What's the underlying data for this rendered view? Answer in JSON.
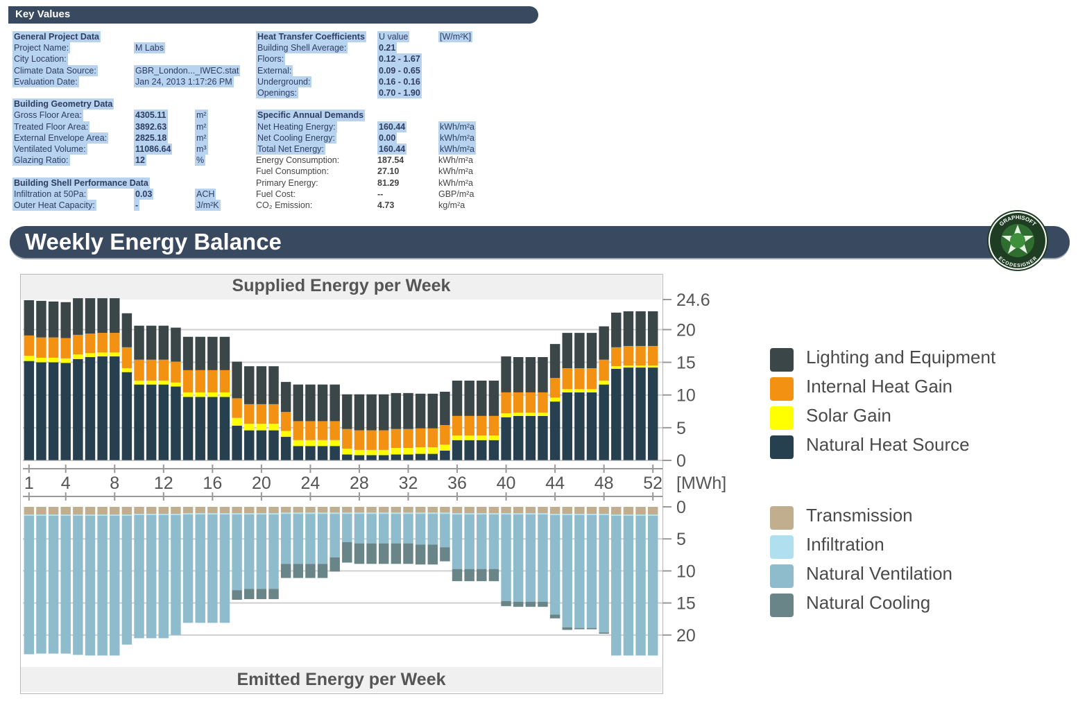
{
  "key_values": {
    "title": "Key Values",
    "general": {
      "header": "General Project Data",
      "rows": [
        {
          "label": "Project Name:",
          "value": "M Labs"
        },
        {
          "label": "City Location:",
          "value": ""
        },
        {
          "label": "Climate Data Source:",
          "value": "GBR_London..._IWEC.stat"
        },
        {
          "label": "Evaluation Date:",
          "value": "Jan 24, 2013 1:17:26 PM"
        }
      ]
    },
    "geometry": {
      "header": "Building Geometry Data",
      "rows": [
        {
          "label": "Gross Floor Area:",
          "value": "4305.11",
          "unit": "m²"
        },
        {
          "label": "Treated Floor Area:",
          "value": "3892.63",
          "unit": "m²"
        },
        {
          "label": "External Envelope Area:",
          "value": "2825.18",
          "unit": "m²"
        },
        {
          "label": "Ventilated Volume:",
          "value": "11086.64",
          "unit": "m³"
        },
        {
          "label": "Glazing Ratio:",
          "value": "12",
          "unit": "%"
        }
      ]
    },
    "shell": {
      "header": "Building Shell Performance Data",
      "rows": [
        {
          "label": "Infiltration at 50Pa:",
          "value": "0.03",
          "unit": "ACH"
        },
        {
          "label": "Outer Heat Capacity:",
          "value": "-",
          "unit": "J/m²K"
        }
      ]
    },
    "htc": {
      "header": "Heat Transfer Coefficients",
      "col2": "U value",
      "col3": "[W/m²K]",
      "rows": [
        {
          "label": "Building Shell Average:",
          "value": "0.21"
        },
        {
          "label": "Floors:",
          "value": "0.12 - 1.67"
        },
        {
          "label": "External:",
          "value": "0.09 - 0.65"
        },
        {
          "label": "Underground:",
          "value": "0.16 - 0.16"
        },
        {
          "label": "Openings:",
          "value": "0.70 - 1.90"
        }
      ]
    },
    "demands": {
      "header": "Specific Annual Demands",
      "rows": [
        {
          "label": "Net Heating Energy:",
          "value": "160.44",
          "unit": "kWh/m²a",
          "hl": true
        },
        {
          "label": "Net Cooling Energy:",
          "value": "0.00",
          "unit": "kWh/m²a",
          "hl": true
        },
        {
          "label": "Total Net Energy:",
          "value": "160.44",
          "unit": "kWh/m²a",
          "hl": true
        },
        {
          "label": "Energy Consumption:",
          "value": "187.54",
          "unit": "kWh/m²a",
          "hl": false
        },
        {
          "label": "Fuel Consumption:",
          "value": "27.10",
          "unit": "kWh/m²a",
          "hl": false
        },
        {
          "label": "Primary Energy:",
          "value": "81.29",
          "unit": "kWh/m²a",
          "hl": false
        },
        {
          "label": "Fuel Cost:",
          "value": "--",
          "unit": "GBP/m²a",
          "hl": false
        },
        {
          "label": "CO₂ Emission:",
          "value": "4.73",
          "unit": "kg/m²a",
          "hl": false
        }
      ]
    }
  },
  "section_title": "Weekly Energy Balance",
  "badge": {
    "top": "GRAPHISOFT",
    "bottom": "ECODESIGNER",
    "left": "STAR",
    "right": "STAR"
  },
  "chart_data": {
    "type": "bar",
    "unit": "[MWh]",
    "supplied": {
      "title": "Supplied Energy per Week",
      "ylim": [
        0,
        24.6
      ],
      "yticks": [
        0,
        5,
        10,
        15,
        20,
        24.6
      ],
      "series": [
        {
          "name": "Natural Heat Source",
          "color": "#27404f",
          "values": [
            15.2,
            15.0,
            15.0,
            14.9,
            15.5,
            15.8,
            15.9,
            15.9,
            13.5,
            11.6,
            11.6,
            11.6,
            11.3,
            9.7,
            9.7,
            9.7,
            9.7,
            5.3,
            4.6,
            4.6,
            4.6,
            3.6,
            2.2,
            2.2,
            2.2,
            2.2,
            0.9,
            0.8,
            0.8,
            0.8,
            0.9,
            0.9,
            1.0,
            1.0,
            1.5,
            3.1,
            3.1,
            3.1,
            3.1,
            6.6,
            6.8,
            6.8,
            6.8,
            9.0,
            10.4,
            10.4,
            10.4,
            11.6,
            14.0,
            14.2,
            14.2,
            14.2
          ]
        },
        {
          "name": "Solar Gain",
          "color": "#ffff00",
          "values": [
            0.8,
            0.7,
            0.7,
            0.7,
            0.7,
            0.6,
            0.6,
            0.6,
            0.6,
            0.6,
            0.6,
            0.6,
            0.6,
            0.7,
            0.7,
            0.7,
            0.7,
            1.2,
            1.0,
            1.0,
            1.0,
            0.9,
            0.9,
            0.9,
            0.9,
            0.9,
            0.9,
            0.8,
            0.8,
            0.8,
            1.0,
            1.0,
            1.0,
            1.0,
            0.9,
            0.7,
            0.7,
            0.7,
            0.7,
            0.6,
            0.5,
            0.5,
            0.5,
            0.6,
            0.5,
            0.5,
            0.5,
            0.6,
            0.4,
            0.3,
            0.3,
            0.3
          ]
        },
        {
          "name": "Internal Heat Gain",
          "color": "#f39212",
          "values": [
            3.1,
            3.1,
            3.1,
            3.1,
            3.0,
            3.0,
            3.0,
            3.0,
            3.2,
            3.2,
            3.2,
            3.2,
            3.2,
            3.4,
            3.4,
            3.4,
            3.4,
            3.0,
            3.0,
            3.0,
            3.0,
            2.9,
            2.9,
            2.9,
            2.9,
            2.9,
            3.0,
            3.0,
            3.0,
            3.0,
            2.9,
            2.9,
            2.9,
            2.9,
            3.0,
            3.0,
            3.0,
            3.0,
            3.0,
            3.2,
            3.1,
            3.1,
            3.1,
            3.0,
            3.2,
            3.2,
            3.2,
            3.2,
            2.9,
            3.0,
            3.0,
            3.0
          ]
        },
        {
          "name": "Lighting and Equipment",
          "color": "#3a4648",
          "values": [
            5.4,
            5.6,
            5.5,
            5.5,
            5.6,
            5.4,
            5.3,
            5.3,
            5.2,
            5.2,
            5.2,
            5.2,
            5.2,
            5.1,
            5.1,
            5.1,
            5.1,
            5.6,
            5.8,
            5.8,
            5.8,
            4.6,
            5.6,
            5.6,
            5.6,
            5.6,
            5.3,
            5.5,
            5.5,
            5.5,
            5.5,
            5.5,
            5.3,
            5.3,
            5.1,
            5.4,
            5.4,
            5.4,
            5.4,
            5.5,
            5.4,
            5.4,
            5.4,
            5.2,
            5.4,
            5.4,
            5.4,
            5.1,
            5.3,
            5.3,
            5.3,
            5.3
          ]
        }
      ]
    },
    "emitted": {
      "title": "Emitted Energy per Week",
      "ylim": [
        0,
        24.6
      ],
      "yticks": [
        0,
        5,
        10,
        15,
        20
      ],
      "series": [
        {
          "name": "Transmission",
          "color": "#c0ae8e",
          "values": [
            1.2,
            1.2,
            1.2,
            1.2,
            1.2,
            1.2,
            1.2,
            1.2,
            1.2,
            1.1,
            1.1,
            1.1,
            1.1,
            1.0,
            1.0,
            1.0,
            1.0,
            1.0,
            1.0,
            1.0,
            1.0,
            0.9,
            0.9,
            0.9,
            0.9,
            0.9,
            0.9,
            0.9,
            0.9,
            0.9,
            0.9,
            0.9,
            0.9,
            0.9,
            0.9,
            1.0,
            1.0,
            1.0,
            1.0,
            1.0,
            1.0,
            1.0,
            1.0,
            1.1,
            1.1,
            1.1,
            1.1,
            1.1,
            1.2,
            1.2,
            1.2,
            1.2
          ]
        },
        {
          "name": "Infiltration",
          "color": "#b0e0f0",
          "values": [
            0.2,
            0.2,
            0.2,
            0.2,
            0.2,
            0.2,
            0.2,
            0.2,
            0.2,
            0.2,
            0.2,
            0.2,
            0.2,
            0.2,
            0.2,
            0.2,
            0.2,
            0.2,
            0.2,
            0.2,
            0.2,
            0.2,
            0.2,
            0.2,
            0.2,
            0.2,
            0.2,
            0.2,
            0.2,
            0.2,
            0.2,
            0.2,
            0.2,
            0.2,
            0.2,
            0.2,
            0.2,
            0.2,
            0.2,
            0.2,
            0.2,
            0.2,
            0.2,
            0.2,
            0.2,
            0.2,
            0.2,
            0.2,
            0.2,
            0.2,
            0.2,
            0.2
          ]
        },
        {
          "name": "Natural Ventilation",
          "color": "#8fbccc",
          "values": [
            21.6,
            21.5,
            21.5,
            21.5,
            21.7,
            21.8,
            21.8,
            21.8,
            20.1,
            19.2,
            19.2,
            19.2,
            18.7,
            16.9,
            16.9,
            16.9,
            16.9,
            11.8,
            11.6,
            11.6,
            11.6,
            7.8,
            7.8,
            7.8,
            7.8,
            6.8,
            4.4,
            4.6,
            4.6,
            4.6,
            4.6,
            4.6,
            4.8,
            4.8,
            5.2,
            8.5,
            8.5,
            8.5,
            8.5,
            13.5,
            13.6,
            13.6,
            13.6,
            15.5,
            17.5,
            17.6,
            17.6,
            18.3,
            21.8,
            21.8,
            21.8,
            21.8
          ]
        },
        {
          "name": "Natural Cooling",
          "color": "#6a8588",
          "values": [
            0,
            0,
            0,
            0,
            0,
            0,
            0,
            0,
            0,
            0,
            0,
            0,
            0,
            0,
            0,
            0,
            0,
            1.5,
            1.6,
            1.6,
            1.6,
            2.2,
            2.2,
            2.2,
            2.2,
            2.2,
            3.2,
            3.2,
            3.2,
            3.2,
            3.2,
            3.2,
            3.1,
            3.1,
            2.2,
            1.9,
            1.9,
            1.9,
            1.9,
            0.8,
            0.8,
            0.8,
            0.8,
            0.6,
            0.4,
            0.2,
            0.2,
            0.2,
            0,
            0,
            0,
            0
          ]
        }
      ]
    },
    "x_tick_labels": [
      "1",
      "4",
      "8",
      "12",
      "16",
      "20",
      "24",
      "28",
      "32",
      "36",
      "40",
      "44",
      "48",
      "52"
    ],
    "x_tick_weeks": [
      1,
      4,
      8,
      12,
      16,
      20,
      24,
      28,
      32,
      36,
      40,
      44,
      48,
      52
    ],
    "weeks": 52
  }
}
